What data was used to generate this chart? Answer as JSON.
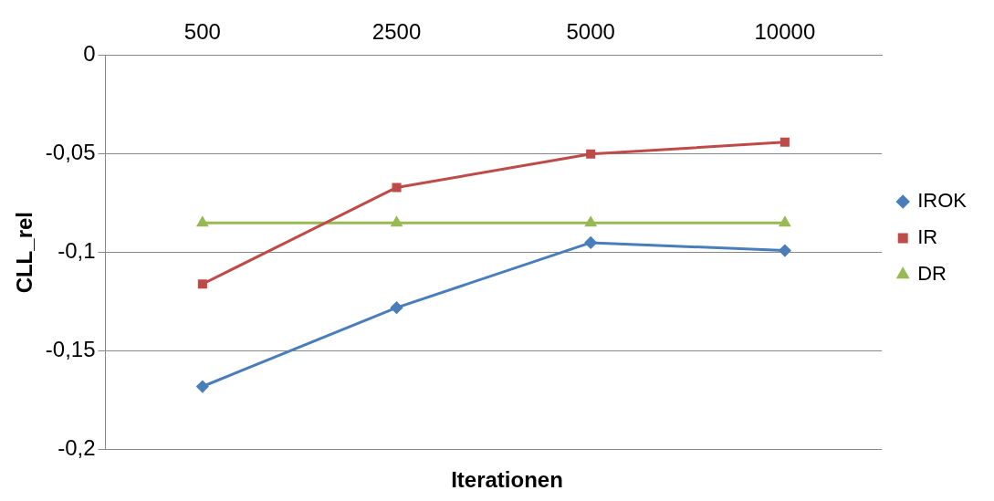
{
  "chart_data": {
    "type": "line",
    "xlabel": "Iterationen",
    "ylabel": "CLL_rel",
    "categories": [
      "500",
      "2500",
      "5000",
      "10000"
    ],
    "series": [
      {
        "name": "IROK",
        "color": "#4a7ebb",
        "marker": "diamond",
        "values": [
          -0.168,
          -0.128,
          -0.095,
          -0.099
        ]
      },
      {
        "name": "IR",
        "color": "#be4b48",
        "marker": "square",
        "values": [
          -0.116,
          -0.067,
          -0.05,
          -0.044
        ]
      },
      {
        "name": "DR",
        "color": "#98b954",
        "marker": "triangle",
        "values": [
          -0.085,
          -0.085,
          -0.085,
          -0.085
        ]
      }
    ],
    "ylim": [
      -0.2,
      0
    ],
    "yticks": [
      {
        "value": -0.2,
        "label": "-0,2"
      },
      {
        "value": -0.15,
        "label": "-0,15"
      },
      {
        "value": -0.1,
        "label": "-0,1"
      },
      {
        "value": -0.05,
        "label": "-0,05"
      },
      0
    ],
    "grid": "y",
    "legend": "right",
    "line_style": "solid"
  }
}
